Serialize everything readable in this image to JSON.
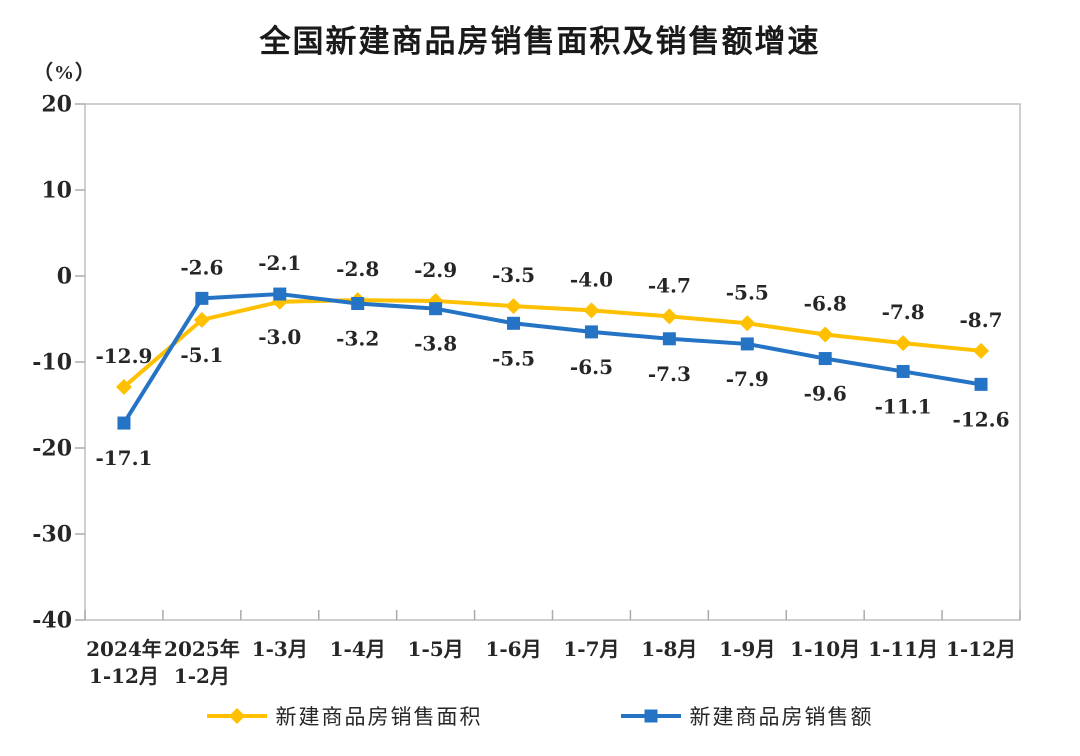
{
  "chart_data": {
    "type": "line",
    "title": "全国新建商品房销售面积及销售额增速",
    "y_unit_label": "（%）",
    "xlabel": "",
    "ylabel": "",
    "ylim": [
      -40,
      20
    ],
    "y_ticks": [
      20,
      10,
      0,
      -10,
      -20,
      -30,
      -40
    ],
    "grid": false,
    "legend_position": "bottom",
    "categories": [
      "2024年\n1-12月",
      "2025年\n1-2月",
      "1-3月",
      "1-4月",
      "1-5月",
      "1-6月",
      "1-7月",
      "1-8月",
      "1-9月",
      "1-10月",
      "1-11月",
      "1-12月"
    ],
    "series": [
      {
        "name": "新建商品房销售面积",
        "marker": "diamond",
        "color": "#FFC000",
        "values": [
          -12.9,
          -5.1,
          -3.0,
          -2.8,
          -2.9,
          -3.5,
          -4.0,
          -4.7,
          -5.5,
          -6.8,
          -7.8,
          -8.7
        ],
        "labels": [
          "-12.9",
          "-5.1",
          "-3.0",
          "-2.8",
          "-2.9",
          "-3.5",
          "-4.0",
          "-4.7",
          "-5.5",
          "-6.8",
          "-7.8",
          "-8.7"
        ]
      },
      {
        "name": "新建商品房销售额",
        "marker": "square",
        "color": "#2473C5",
        "values": [
          -17.1,
          -2.6,
          -2.1,
          -3.2,
          -3.8,
          -5.5,
          -6.5,
          -7.3,
          -7.9,
          -9.6,
          -11.1,
          -12.6
        ],
        "labels": [
          "-17.1",
          "-2.6",
          "-2.1",
          "-3.2",
          "-3.8",
          "-5.5",
          "-6.5",
          "-7.3",
          "-7.9",
          "-9.6",
          "-11.1",
          "-12.6"
        ]
      }
    ]
  },
  "colors": {
    "background": "#ffffff",
    "title_text": "#1a1a1a",
    "label_text": "#262626",
    "axis_border": "#bfbfbf",
    "tick": "#ababab"
  }
}
